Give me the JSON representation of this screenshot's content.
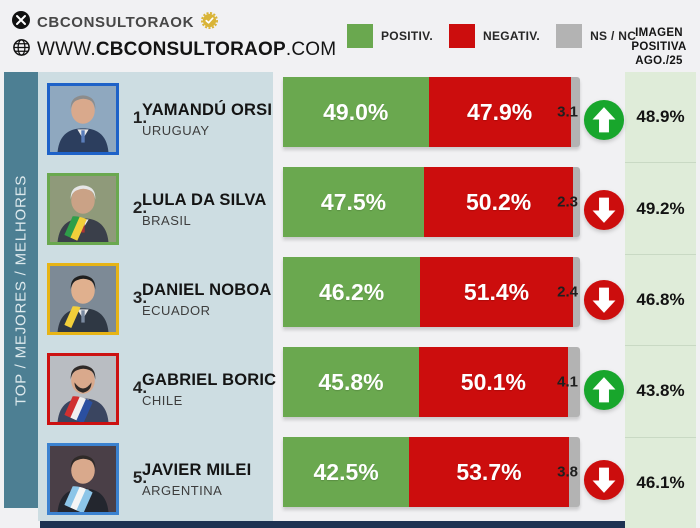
{
  "header": {
    "account_name": "CBCONSULTORAOK",
    "website_prefix": "WWW.",
    "website_bold": "CBCONSULTORAOP",
    "website_suffix": ".COM"
  },
  "legend": {
    "positive": "POSITIV.",
    "negative": "NEGATIV.",
    "nsnc": "NS / NC"
  },
  "right_header": {
    "line1": "IMAGEN",
    "line2": "POSITIVA",
    "line3": "AGO./25"
  },
  "sidebar_label": "TOP / MEJORES / MELHORES",
  "colors": {
    "positive": "#6aa84f",
    "negative": "#cc0d0d",
    "nsnc": "#b3b3b3",
    "trend_up": "#18a62c",
    "trend_down": "#cc0d0d",
    "sidebar": "#4d7f93",
    "panel": "#cddde2",
    "right_col_bg": "#dfecd9",
    "badge_gold": "#d9b437"
  },
  "rows": [
    {
      "rank": "1.",
      "name": "YAMANDÚ ORSI",
      "country": "URUGUAY",
      "positive": 49.0,
      "negative": 47.9,
      "nsnc": 3.1,
      "positive_label": "49.0%",
      "negative_label": "47.9%",
      "nsnc_label": "3.1",
      "trend": "up",
      "imagen_positiva": "48.9%",
      "photo_border": "#1e62c8",
      "photo": {
        "bg": "#8fa8bf",
        "suit": "#2c3e5e",
        "skin": "#d9a98c",
        "hair": "#8c8c8c",
        "tie": "#5a7dbb",
        "sash": []
      }
    },
    {
      "rank": "2.",
      "name": "LULA DA SILVA",
      "country": "BRASIL",
      "positive": 47.5,
      "negative": 50.2,
      "nsnc": 2.3,
      "positive_label": "47.5%",
      "negative_label": "50.2%",
      "nsnc_label": "2.3",
      "trend": "down",
      "imagen_positiva": "49.2%",
      "photo_border": "#6aa84f",
      "photo": {
        "bg": "#8f9a7a",
        "suit": "#3a3f4a",
        "skin": "#caa286",
        "hair": "#e6e6e6",
        "tie": "#a33",
        "sash": [
          "#2e9e49",
          "#f2cf3a"
        ]
      }
    },
    {
      "rank": "3.",
      "name": "DANIEL NOBOA",
      "country": "ECUADOR",
      "positive": 46.2,
      "negative": 51.4,
      "nsnc": 2.4,
      "positive_label": "46.2%",
      "negative_label": "51.4%",
      "nsnc_label": "2.4",
      "trend": "down",
      "imagen_positiva": "46.8%",
      "photo_border": "#e7b416",
      "photo": {
        "bg": "#7d8a96",
        "suit": "#2f3844",
        "skin": "#e0b08e",
        "hair": "#1f1f1f",
        "tie": "#7a8aa0",
        "sash": [
          "#f2cf3a"
        ]
      }
    },
    {
      "rank": "4.",
      "name": "GABRIEL BORIC",
      "country": "CHILE",
      "positive": 45.8,
      "negative": 50.1,
      "nsnc": 4.1,
      "positive_label": "45.8%",
      "negative_label": "50.1%",
      "nsnc_label": "4.1",
      "trend": "up",
      "imagen_positiva": "43.8%",
      "photo_border": "#cc1111",
      "photo": {
        "bg": "#b9bdc2",
        "suit": "#3a4560",
        "skin": "#d9a98c",
        "hair": "#2f2a28",
        "beard": "#2f2a28",
        "tie": "#3a4560",
        "sash": [
          "#d03030",
          "#f0f0f0",
          "#2a4fa0"
        ]
      }
    },
    {
      "rank": "5.",
      "name": "JAVIER MILEI",
      "country": "ARGENTINA",
      "positive": 42.5,
      "negative": 53.7,
      "nsnc": 3.8,
      "positive_label": "42.5%",
      "negative_label": "53.7%",
      "nsnc_label": "3.8",
      "trend": "down",
      "imagen_positiva": "46.1%",
      "photo_border": "#3b82d0",
      "photo": {
        "bg": "#4a3f47",
        "suit": "#23262e",
        "skin": "#d9a98c",
        "hair": "#2f2a28",
        "tie": "#23262e",
        "sash": [
          "#8cc5e8",
          "#f5f5f5",
          "#8cc5e8"
        ]
      }
    }
  ],
  "chart_data": {
    "type": "bar",
    "subtype": "horizontal-stacked",
    "title": "TOP / MEJORES / MELHORES",
    "categories": [
      "YAMANDÚ ORSI (URUGUAY)",
      "LULA DA SILVA (BRASIL)",
      "DANIEL NOBOA (ECUADOR)",
      "GABRIEL BORIC (CHILE)",
      "JAVIER MILEI (ARGENTINA)"
    ],
    "series": [
      {
        "name": "POSITIV.",
        "color": "#6aa84f",
        "values": [
          49.0,
          47.5,
          46.2,
          45.8,
          42.5
        ]
      },
      {
        "name": "NEGATIV.",
        "color": "#cc0d0d",
        "values": [
          47.9,
          50.2,
          51.4,
          50.1,
          53.7
        ]
      },
      {
        "name": "NS / NC",
        "color": "#b3b3b3",
        "values": [
          3.1,
          2.3,
          2.4,
          4.1,
          3.8
        ]
      }
    ],
    "trend_arrows": [
      "up",
      "down",
      "down",
      "up",
      "down"
    ],
    "extra_column": {
      "label": "IMAGEN POSITIVA AGO./25",
      "values": [
        48.9,
        49.2,
        46.8,
        43.8,
        46.1
      ]
    },
    "xlim": [
      0,
      100
    ],
    "grid": false,
    "legend_position": "top"
  }
}
